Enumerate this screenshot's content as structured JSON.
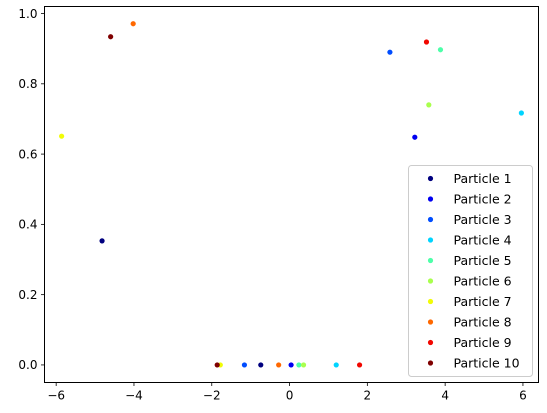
{
  "chart_data": {
    "type": "scatter",
    "xlim": [
      -6.3,
      6.4
    ],
    "ylim": [
      -0.05,
      1.02
    ],
    "xticks": [
      -6,
      -4,
      -2,
      0,
      2,
      4,
      6
    ],
    "xtick_labels": [
      "−6",
      "−4",
      "−2",
      "0",
      "2",
      "4",
      "6"
    ],
    "yticks": [
      0.0,
      0.2,
      0.4,
      0.6,
      0.8,
      1.0
    ],
    "ytick_labels": [
      "0.0",
      "0.2",
      "0.4",
      "0.6",
      "0.8",
      "1.0"
    ],
    "grid": false,
    "legend_position": "lower-right",
    "series": [
      {
        "name": "Particle 1",
        "color": "#00007f",
        "points": [
          [
            -4.82,
            0.353
          ],
          [
            -0.74,
            0.0
          ]
        ]
      },
      {
        "name": "Particle 2",
        "color": "#0000f1",
        "points": [
          [
            3.22,
            0.648
          ],
          [
            0.04,
            0.0
          ]
        ]
      },
      {
        "name": "Particle 3",
        "color": "#004dff",
        "points": [
          [
            2.58,
            0.89
          ],
          [
            -1.16,
            0.0
          ]
        ]
      },
      {
        "name": "Particle 4",
        "color": "#00d4ff",
        "points": [
          [
            5.96,
            0.717
          ],
          [
            1.2,
            0.0
          ]
        ]
      },
      {
        "name": "Particle 5",
        "color": "#4dffa9",
        "points": [
          [
            3.88,
            0.897
          ],
          [
            0.24,
            0.0
          ]
        ]
      },
      {
        "name": "Particle 6",
        "color": "#a9ff4d",
        "points": [
          [
            3.58,
            0.74
          ],
          [
            0.36,
            0.0
          ]
        ]
      },
      {
        "name": "Particle 7",
        "color": "#f1fc06",
        "points": [
          [
            -5.86,
            0.651
          ],
          [
            -1.78,
            0.0
          ]
        ]
      },
      {
        "name": "Particle 8",
        "color": "#ff6800",
        "points": [
          [
            -4.02,
            0.971
          ],
          [
            -0.28,
            0.0
          ]
        ]
      },
      {
        "name": "Particle 9",
        "color": "#f10700",
        "points": [
          [
            3.52,
            0.919
          ],
          [
            1.8,
            0.0
          ]
        ]
      },
      {
        "name": "Particle 10",
        "color": "#7f0000",
        "points": [
          [
            -4.6,
            0.934
          ],
          [
            -1.86,
            0.0
          ]
        ]
      }
    ]
  }
}
